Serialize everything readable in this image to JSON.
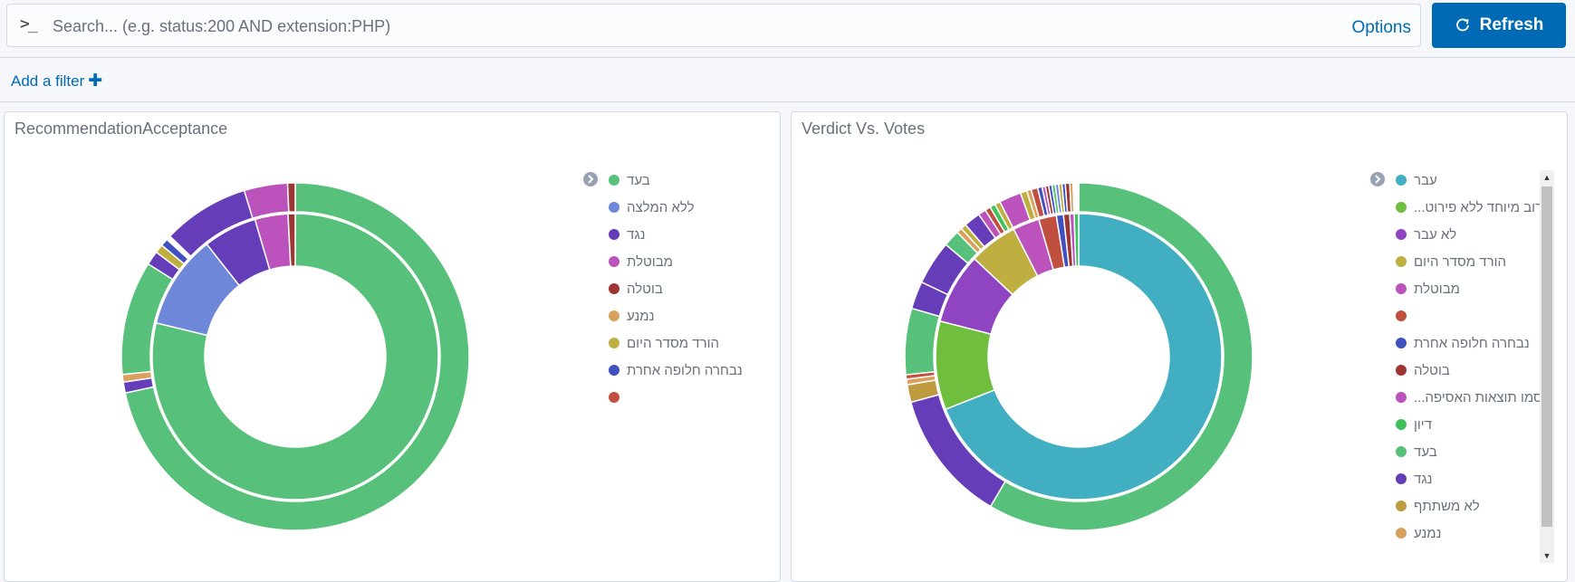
{
  "query": {
    "prompt": ">_",
    "placeholder": "Search... (e.g. status:200 AND extension:PHP)",
    "options_label": "Options",
    "refresh_label": "Refresh"
  },
  "filters": {
    "add_label": "Add a filter",
    "add_icon": "plus-icon"
  },
  "colors": {
    "accent": "#006bb4"
  },
  "panels": [
    {
      "title": "RecommendationAcceptance",
      "legend": [
        {
          "label": "בעד",
          "color": "#57c17b"
        },
        {
          "label": "ללא המלצה",
          "color": "#6f87d8"
        },
        {
          "label": "נגד",
          "color": "#663db8"
        },
        {
          "label": "מבוטלת",
          "color": "#bc52bc"
        },
        {
          "label": "בוטלה",
          "color": "#9e3533"
        },
        {
          "label": "נמנע",
          "color": "#daa05d"
        },
        {
          "label": "הורד מסדר היום",
          "color": "#bfaf40"
        },
        {
          "label": "נבחרה חלופה אחרת",
          "color": "#4050bf"
        },
        {
          "label": "",
          "color": "#c14f3f"
        }
      ],
      "chart_data": {
        "type": "pie",
        "rings": [
          {
            "name": "inner",
            "slices": [
              {
                "label": "בעד",
                "value": 78.0,
                "color": "#57c17b"
              },
              {
                "label": "ללא המלצה",
                "value": 10.5,
                "color": "#6f87d8"
              },
              {
                "label": "נגד",
                "value": 6.0,
                "color": "#663db8"
              },
              {
                "label": "מבוטלת",
                "value": 3.7,
                "color": "#bc52bc"
              },
              {
                "label": "בוטלה",
                "value": 0.8,
                "color": "#9e3533"
              }
            ]
          },
          {
            "name": "outer",
            "slices": [
              {
                "value": 71.0,
                "color": "#57c17b"
              },
              {
                "value": 1.0,
                "color": "#663db8"
              },
              {
                "value": 0.7,
                "color": "#daa05d"
              },
              {
                "value": 10.5,
                "color": "#57c17b"
              },
              {
                "value": 1.3,
                "color": "#663db8"
              },
              {
                "value": 0.8,
                "color": "#bfaf40"
              },
              {
                "value": 0.7,
                "color": "#4050bf"
              },
              {
                "value": 0.4,
                "color": "#ffffff"
              },
              {
                "value": 8.0,
                "color": "#663db8"
              },
              {
                "value": 4.0,
                "color": "#bc52bc"
              },
              {
                "value": 0.7,
                "color": "#9e3533"
              }
            ]
          }
        ]
      }
    },
    {
      "title": "Verdict Vs. Votes",
      "legend": [
        {
          "label": "עבר",
          "color": "#41afc1"
        },
        {
          "label": "רוב מיוחד ללא פירוט...",
          "color": "#6fbe3e"
        },
        {
          "label": "לא עבר",
          "color": "#8f44c2"
        },
        {
          "label": "הורד מסדר היום",
          "color": "#bfaf40"
        },
        {
          "label": "מבוטלת",
          "color": "#bc52bc"
        },
        {
          "label": "",
          "color": "#c14f3f"
        },
        {
          "label": "נבחרה חלופה אחרת",
          "color": "#4050bf"
        },
        {
          "label": "בוטלה",
          "color": "#9e3533"
        },
        {
          "label": "סמו תוצאות האסיפה...",
          "color": "#bc52bc"
        },
        {
          "label": "דיון",
          "color": "#3fc15c"
        },
        {
          "label": "בעד",
          "color": "#57c17b"
        },
        {
          "label": "נגד",
          "color": "#663db8"
        },
        {
          "label": "לא משתתף",
          "color": "#bf9b40"
        },
        {
          "label": "נמנע",
          "color": "#daa05d"
        }
      ],
      "chart_data": {
        "type": "pie",
        "rings": [
          {
            "name": "inner",
            "slices": [
              {
                "label": "עבר",
                "value": 69.0,
                "color": "#41afc1"
              },
              {
                "label": "רוב מיוחד ללא פירוט...",
                "value": 10.0,
                "color": "#6fbe3e"
              },
              {
                "label": "לא עבר",
                "value": 8.0,
                "color": "#8f44c2"
              },
              {
                "label": "הורד מסדר היום",
                "value": 5.5,
                "color": "#bfaf40"
              },
              {
                "label": "מבוטלת",
                "value": 3.0,
                "color": "#bc52bc"
              },
              {
                "label": "",
                "value": 2.0,
                "color": "#c14f3f"
              },
              {
                "label": "נבחרה חלופה אחרת",
                "value": 0.8,
                "color": "#4050bf"
              },
              {
                "label": "בוטלה",
                "value": 0.7,
                "color": "#9e3533"
              },
              {
                "label": "סמו תוצאות האסיפה...",
                "value": 0.5,
                "color": "#bc52bc"
              },
              {
                "label": "דיון",
                "value": 0.5,
                "color": "#3fc15c"
              }
            ]
          },
          {
            "name": "outer",
            "slices": [
              {
                "value": 57.0,
                "color": "#57c17b"
              },
              {
                "value": 12.0,
                "color": "#663db8"
              },
              {
                "value": 1.6,
                "color": "#bf9b40"
              },
              {
                "value": 0.5,
                "color": "#daa05d"
              },
              {
                "value": 0.4,
                "color": "#c14f3f"
              },
              {
                "value": 6.0,
                "color": "#57c17b"
              },
              {
                "value": 2.5,
                "color": "#663db8"
              },
              {
                "value": 4.0,
                "color": "#663db8"
              },
              {
                "value": 1.5,
                "color": "#57c17b"
              },
              {
                "value": 0.5,
                "color": "#daa05d"
              },
              {
                "value": 0.5,
                "color": "#bfaf40"
              },
              {
                "value": 1.5,
                "color": "#663db8"
              },
              {
                "value": 0.7,
                "color": "#bc52bc"
              },
              {
                "value": 0.5,
                "color": "#c14f3f"
              },
              {
                "value": 0.5,
                "color": "#3fc15c"
              },
              {
                "value": 0.5,
                "color": "#bfaf40"
              },
              {
                "value": 2.0,
                "color": "#bc52bc"
              },
              {
                "value": 0.6,
                "color": "#bfaf40"
              },
              {
                "value": 0.4,
                "color": "#daa05d"
              },
              {
                "value": 0.6,
                "color": "#c14f3f"
              },
              {
                "value": 0.4,
                "color": "#4050bf"
              },
              {
                "value": 0.3,
                "color": "#bc52bc"
              },
              {
                "value": 0.3,
                "color": "#9e3533"
              },
              {
                "value": 0.3,
                "color": "#4050bf"
              },
              {
                "value": 0.3,
                "color": "#57c17b"
              },
              {
                "value": 0.3,
                "color": "#6f87d8"
              },
              {
                "value": 0.3,
                "color": "#bfaf40"
              },
              {
                "value": 0.3,
                "color": "#4050bf"
              },
              {
                "value": 0.4,
                "color": "#9e3533"
              },
              {
                "value": 0.3,
                "color": "#daa05d"
              },
              {
                "value": 0.5,
                "color": "#ffffff"
              }
            ]
          }
        ]
      }
    }
  ]
}
